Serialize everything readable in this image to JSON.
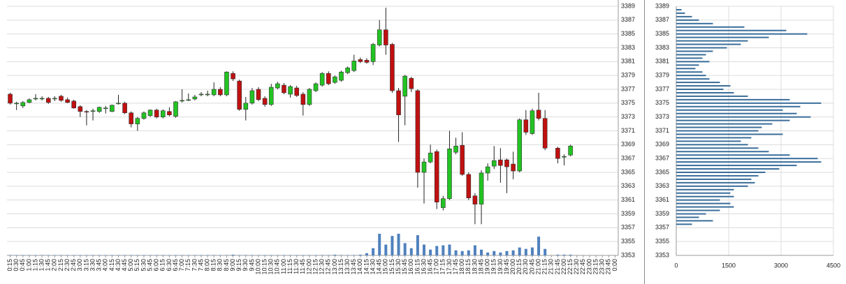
{
  "chart_data": [
    {
      "type": "candlestick",
      "categories": [
        "0:15",
        "0:30",
        "0:45",
        "1:00",
        "1:15",
        "1:30",
        "1:45",
        "2:00",
        "2:15",
        "2:30",
        "2:45",
        "3:00",
        "3:15",
        "3:30",
        "3:45",
        "4:00",
        "4:15",
        "4:30",
        "4:45",
        "5:00",
        "5:15",
        "5:30",
        "5:45",
        "6:00",
        "6:15",
        "6:30",
        "6:45",
        "7:00",
        "7:15",
        "7:30",
        "7:45",
        "8:00",
        "8:15",
        "8:30",
        "8:45",
        "9:00",
        "9:15",
        "9:30",
        "9:45",
        "10:00",
        "10:15",
        "10:30",
        "10:45",
        "11:00",
        "11:15",
        "11:30",
        "11:45",
        "12:00",
        "12:15",
        "12:30",
        "12:45",
        "13:00",
        "13:15",
        "13:30",
        "13:45",
        "14:00",
        "14:15",
        "14:30",
        "14:45",
        "15:00",
        "15:15",
        "15:30",
        "15:45",
        "16:00",
        "16:15",
        "16:30",
        "16:45",
        "17:00",
        "17:15",
        "17:30",
        "17:45",
        "18:00",
        "18:15",
        "18:30",
        "18:45",
        "19:00",
        "19:15",
        "19:30",
        "19:45",
        "20:00",
        "20:15",
        "20:30",
        "20:45",
        "21:00",
        "21:15",
        "21:30",
        "21:45",
        "22:00",
        "22:15",
        "22:30",
        "22:45",
        "23:00",
        "23:15",
        "23:30",
        "23:45",
        "0:00"
      ],
      "open": [
        3376.3,
        3375.0,
        3374.6,
        3375.1,
        3375.7,
        3375.7,
        3375.7,
        3375.7,
        3376.0,
        3375.5,
        3375.3,
        3374.5,
        3373.8,
        3373.9,
        3373.8,
        3374.3,
        3373.8,
        3375.0,
        3375.0,
        3373.6,
        3372.0,
        3372.8,
        3373.2,
        3374.0,
        3373.0,
        3373.8,
        3373.1,
        3375.3,
        3375.5,
        3375.6,
        3376.3,
        3376.3,
        3376.2,
        3377.0,
        3376.2,
        3379.3,
        3378.2,
        3374.1,
        3375.0,
        3377.0,
        3375.7,
        3374.8,
        3377.2,
        3377.6,
        3376.3,
        3377.2,
        3376.3,
        3374.8,
        3376.8,
        3377.6,
        3379.3,
        3378.0,
        3378.3,
        3379.4,
        3379.7,
        3381.3,
        3381.2,
        3381.0,
        3383.4,
        3385.6,
        3383.5,
        3376.8,
        3376.0,
        3378.6,
        3376.8,
        3365.0,
        3366.5,
        3368.0,
        3359.9,
        3361.2,
        3367.9,
        3368.9,
        3364.7,
        3361.6,
        3360.4,
        3364.9,
        3365.9,
        3366.8,
        3366.8,
        3366.2,
        3365.2,
        3372.6,
        3370.6,
        3374.0,
        3372.8,
        null,
        3368.5,
        3367.3,
        3367.5,
        null,
        null,
        null,
        null,
        null,
        null,
        null
      ],
      "high": [
        3376.5,
        3375.2,
        3375.3,
        3375.7,
        3376.3,
        3376.0,
        3375.9,
        3376.0,
        3376.2,
        3375.8,
        3375.5,
        3374.7,
        3374.0,
        3374.2,
        3374.5,
        3374.6,
        3374.8,
        3376.2,
        3375.2,
        3373.8,
        3373.0,
        3373.8,
        3374.1,
        3374.2,
        3374.1,
        3374.4,
        3375.3,
        3377.0,
        3376.4,
        3376.2,
        3376.6,
        3376.8,
        3378.0,
        3377.3,
        3379.6,
        3379.6,
        3378.4,
        3375.9,
        3377.2,
        3377.3,
        3376.0,
        3377.8,
        3378.1,
        3377.9,
        3377.6,
        3377.5,
        3376.6,
        3377.2,
        3378.0,
        3379.5,
        3379.6,
        3379.0,
        3379.7,
        3380.3,
        3382.0,
        3381.6,
        3381.5,
        3383.7,
        3387.0,
        3388.8,
        3383.7,
        3377.2,
        3379.1,
        3378.8,
        3377.0,
        3367.0,
        3369.0,
        3368.3,
        3361.6,
        3371.0,
        3370.0,
        3370.8,
        3365.0,
        3362.0,
        3365.3,
        3366.3,
        3368.8,
        3368.5,
        3367.0,
        3368.0,
        3372.8,
        3374.0,
        3374.2,
        3376.5,
        3374.0,
        null,
        3368.7,
        3367.6,
        3369.0,
        null,
        null,
        null,
        null,
        null,
        null,
        null
      ],
      "low": [
        3374.8,
        3374.0,
        3374.3,
        3375.0,
        3375.4,
        3375.4,
        3374.9,
        3375.3,
        3375.2,
        3375.0,
        3374.2,
        3373.0,
        3371.8,
        3372.5,
        3373.6,
        3373.5,
        3373.7,
        3374.8,
        3373.4,
        3371.5,
        3371.0,
        3372.6,
        3373.0,
        3372.8,
        3372.8,
        3373.1,
        3372.9,
        3375.1,
        3375.3,
        3375.4,
        3376.0,
        3376.0,
        3376.0,
        3376.0,
        3376.0,
        3378.2,
        3373.9,
        3372.5,
        3374.8,
        3375.3,
        3374.5,
        3374.6,
        3377.0,
        3376.3,
        3375.8,
        3375.9,
        3373.2,
        3374.6,
        3376.6,
        3377.4,
        3377.6,
        3377.8,
        3378.1,
        3379.2,
        3379.5,
        3380.8,
        3380.7,
        3380.5,
        3383.2,
        3382.0,
        3376.5,
        3369.4,
        3371.8,
        3376.6,
        3362.8,
        3360.5,
        3366.3,
        3359.7,
        3359.5,
        3361.0,
        3367.6,
        3364.5,
        3361.0,
        3357.5,
        3357.5,
        3363.8,
        3365.5,
        3363.5,
        3362.0,
        3364.0,
        3365.0,
        3370.4,
        3370.4,
        3372.5,
        3368.2,
        null,
        3366.3,
        3366.0,
        3367.3,
        null,
        null,
        null,
        null,
        null,
        null,
        null
      ],
      "close": [
        3375.0,
        3375.0,
        3375.1,
        3375.5,
        3375.7,
        3375.7,
        3375.1,
        3375.7,
        3375.4,
        3375.1,
        3374.3,
        3373.8,
        3373.7,
        3373.9,
        3374.4,
        3374.3,
        3374.7,
        3375.0,
        3373.6,
        3372.0,
        3372.8,
        3373.6,
        3374.0,
        3373.0,
        3373.9,
        3373.3,
        3375.2,
        3375.4,
        3375.5,
        3375.9,
        3376.3,
        3376.3,
        3377.0,
        3376.2,
        3379.5,
        3378.5,
        3374.1,
        3375.0,
        3376.8,
        3375.5,
        3374.8,
        3377.3,
        3377.8,
        3376.5,
        3377.4,
        3376.1,
        3374.8,
        3377.0,
        3377.8,
        3379.3,
        3377.8,
        3378.8,
        3379.5,
        3380.1,
        3381.1,
        3381.0,
        3380.9,
        3383.5,
        3385.6,
        3383.4,
        3376.8,
        3373.3,
        3378.9,
        3377.1,
        3365.0,
        3366.5,
        3367.8,
        3360.7,
        3361.2,
        3368.4,
        3368.8,
        3364.7,
        3361.3,
        3360.4,
        3364.9,
        3365.8,
        3366.7,
        3366.0,
        3365.8,
        3365.2,
        3372.6,
        3370.8,
        3373.9,
        3372.8,
        3368.5,
        null,
        3367.0,
        3367.3,
        3368.8,
        null,
        null,
        null,
        null,
        null,
        null,
        null
      ],
      "volume": [
        50,
        50,
        50,
        50,
        50,
        50,
        50,
        50,
        50,
        50,
        50,
        50,
        50,
        50,
        50,
        50,
        50,
        50,
        50,
        50,
        50,
        50,
        50,
        50,
        50,
        50,
        50,
        50,
        50,
        50,
        50,
        50,
        50,
        50,
        50,
        100,
        50,
        50,
        50,
        50,
        50,
        50,
        50,
        50,
        50,
        50,
        50,
        50,
        50,
        50,
        50,
        100,
        50,
        50,
        50,
        100,
        300,
        1000,
        3000,
        1500,
        2700,
        3000,
        1700,
        1000,
        2800,
        1500,
        800,
        1300,
        1400,
        1500,
        700,
        600,
        700,
        1400,
        800,
        400,
        600,
        400,
        600,
        700,
        1100,
        900,
        1100,
        2600,
        900,
        null,
        100,
        100,
        100,
        null,
        null,
        null,
        null,
        null,
        null,
        null
      ],
      "up_color": "#22c322",
      "down_color": "#c01010",
      "volume_color": "#4f81bd",
      "ylim": [
        3353,
        3389
      ],
      "yticks": [
        3353,
        3355,
        3357,
        3359,
        3361,
        3363,
        3365,
        3367,
        3369,
        3371,
        3373,
        3375,
        3377,
        3379,
        3381,
        3383,
        3385,
        3387,
        3389
      ],
      "grid": true
    },
    {
      "type": "volume_profile",
      "y": [
        3388.5,
        3388,
        3387.5,
        3387,
        3386.5,
        3386,
        3385.5,
        3385,
        3384.5,
        3384,
        3383.5,
        3383,
        3382.5,
        3382,
        3381.5,
        3381,
        3380.5,
        3380,
        3379.5,
        3379,
        3378.5,
        3378,
        3377.5,
        3377,
        3376.5,
        3376,
        3375.5,
        3375,
        3374.5,
        3374,
        3373.5,
        3373,
        3372.5,
        3372,
        3371.5,
        3371,
        3370.5,
        3370,
        3369.5,
        3369,
        3368.5,
        3368,
        3367.5,
        3367,
        3366.5,
        3366,
        3365.5,
        3365,
        3364.5,
        3364,
        3363.5,
        3363,
        3362.5,
        3362,
        3361.5,
        3361,
        3360.5,
        3360,
        3359.5,
        3359,
        3358.5,
        3358,
        3357.5
      ],
      "values": [
        150,
        250,
        450,
        650,
        1050,
        1950,
        3150,
        3750,
        2650,
        2050,
        1850,
        1450,
        1050,
        850,
        750,
        950,
        650,
        550,
        750,
        850,
        950,
        1250,
        1550,
        1350,
        1650,
        2050,
        3250,
        4150,
        3550,
        3050,
        3450,
        3850,
        3250,
        2750,
        2450,
        2350,
        3050,
        2150,
        1850,
        2050,
        2350,
        2650,
        3250,
        4050,
        4150,
        3450,
        2950,
        2550,
        2350,
        2150,
        2250,
        2050,
        1650,
        1550,
        1650,
        1250,
        1550,
        1650,
        1250,
        850,
        650,
        1050,
        450
      ],
      "color": "#3a6d9a",
      "xlim": [
        0,
        4500
      ],
      "xticks": [
        0,
        1500,
        3000,
        4500
      ],
      "ylim": [
        3353,
        3389
      ],
      "yticks": [
        3353,
        3355,
        3357,
        3359,
        3361,
        3363,
        3365,
        3367,
        3369,
        3371,
        3373,
        3375,
        3377,
        3379,
        3381,
        3383,
        3385,
        3387,
        3389
      ],
      "grid": true
    }
  ]
}
